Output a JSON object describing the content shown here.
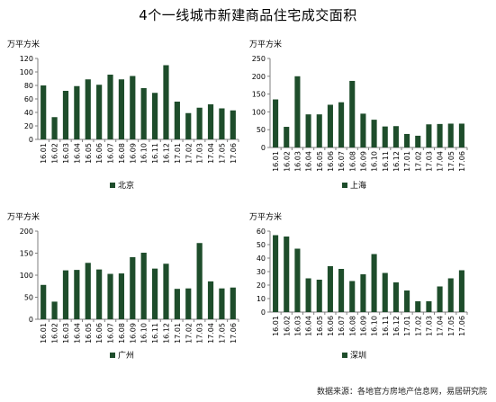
{
  "title": "4个一线城市新建商品住宅成交面积",
  "source": "数据来源：各地官方房地产信息网，易居研究院",
  "colors": {
    "bar": "#1e4d2b",
    "axis": "#7f7f7f",
    "legend": "#1e4d2b"
  },
  "chart_data": [
    {
      "type": "bar",
      "unit": "万平方米",
      "categories": [
        "16.01",
        "16.02",
        "16.03",
        "16.04",
        "16.05",
        "16.06",
        "16.07",
        "16.08",
        "16.09",
        "16.10",
        "16.11",
        "16.12",
        "17.01",
        "17.02",
        "17.03",
        "17.04",
        "17.05",
        "17.06"
      ],
      "series": [
        {
          "name": "北京",
          "values": [
            80,
            33,
            72,
            79,
            89,
            81,
            96,
            89,
            94,
            76,
            69,
            110,
            56,
            39,
            47,
            52,
            46,
            43
          ]
        }
      ],
      "ylim": [
        0,
        120
      ],
      "yticks": [
        0,
        20,
        40,
        60,
        80,
        100,
        120
      ],
      "legend": "bottom"
    },
    {
      "type": "bar",
      "unit": "万平方米",
      "categories": [
        "16.01",
        "16.02",
        "16.03",
        "16.04",
        "16.05",
        "16.06",
        "16.07",
        "16.08",
        "16.09",
        "16.10",
        "16.11",
        "16.12",
        "17.01",
        "17.02",
        "17.03",
        "17.04",
        "17.05",
        "17.06"
      ],
      "series": [
        {
          "name": "上海",
          "values": [
            135,
            58,
            200,
            93,
            93,
            120,
            127,
            187,
            95,
            78,
            59,
            60,
            38,
            33,
            65,
            66,
            67,
            67
          ]
        }
      ],
      "ylim": [
        0,
        250
      ],
      "yticks": [
        0,
        50,
        100,
        150,
        200,
        250
      ],
      "legend": "bottom"
    },
    {
      "type": "bar",
      "unit": "万平方米",
      "categories": [
        "16.01",
        "16.02",
        "16.03",
        "16.04",
        "16.05",
        "16.06",
        "16.07",
        "16.08",
        "16.09",
        "16.10",
        "16.11",
        "16.12",
        "17.01",
        "17.02",
        "17.03",
        "17.04",
        "17.05",
        "17.06"
      ],
      "series": [
        {
          "name": "广州",
          "values": [
            78,
            40,
            111,
            112,
            128,
            113,
            103,
            104,
            141,
            151,
            115,
            126,
            69,
            70,
            173,
            86,
            70,
            72
          ]
        }
      ],
      "ylim": [
        0,
        200
      ],
      "yticks": [
        0,
        50,
        100,
        150,
        200
      ],
      "legend": "bottom"
    },
    {
      "type": "bar",
      "unit": "万平方米",
      "categories": [
        "16.01",
        "16.02",
        "16.03",
        "16.04",
        "16.05",
        "16.06",
        "16.07",
        "16.08",
        "16.09",
        "16.10",
        "16.11",
        "16.12",
        "17.01",
        "17.02",
        "17.03",
        "17.04",
        "17.05",
        "17.06"
      ],
      "series": [
        {
          "name": "深圳",
          "values": [
            57,
            56,
            47,
            25,
            24,
            34,
            32,
            23,
            28,
            43,
            29,
            22,
            16,
            8,
            8,
            19,
            25,
            31
          ]
        }
      ],
      "ylim": [
        0,
        60
      ],
      "yticks": [
        0,
        10,
        20,
        30,
        40,
        50,
        60
      ],
      "legend": "bottom"
    }
  ]
}
